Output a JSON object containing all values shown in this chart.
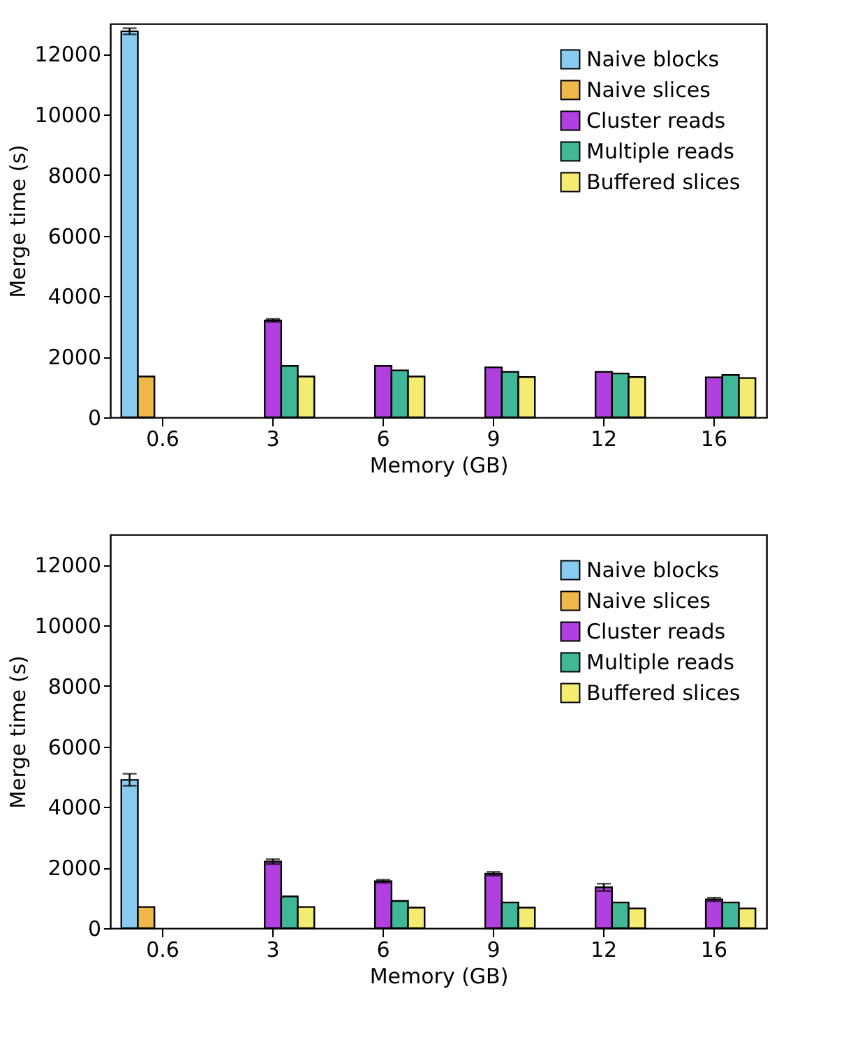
{
  "chart_data": [
    {
      "type": "bar",
      "xlabel": "Memory (GB)",
      "ylabel": "Merge time (s)",
      "categories": [
        "0.6",
        "3",
        "6",
        "9",
        "12",
        "16"
      ],
      "ylim": [
        0,
        13000
      ],
      "yticks": [
        0,
        2000,
        4000,
        6000,
        8000,
        10000,
        12000
      ],
      "grid": false,
      "legend": "top right",
      "series": [
        {
          "name": "Naive blocks",
          "color": "#87ccf0",
          "values": [
            12750,
            null,
            null,
            null,
            null,
            null
          ],
          "errors": [
            100,
            null,
            null,
            null,
            null,
            null
          ]
        },
        {
          "name": "Naive slices",
          "color": "#eeb84a",
          "values": [
            1350,
            null,
            null,
            null,
            null,
            null
          ]
        },
        {
          "name": "Cluster reads",
          "color": "#b040e0",
          "values": [
            null,
            3200,
            1700,
            1650,
            1500,
            1320
          ],
          "errors": [
            null,
            50,
            null,
            null,
            null,
            null
          ]
        },
        {
          "name": "Multiple reads",
          "color": "#40b898",
          "values": [
            null,
            1700,
            1550,
            1500,
            1450,
            1400
          ]
        },
        {
          "name": "Buffered slices",
          "color": "#f4ec70",
          "values": [
            null,
            1350,
            1350,
            1330,
            1330,
            1300
          ]
        }
      ]
    },
    {
      "type": "bar",
      "xlabel": "Memory (GB)",
      "ylabel": "Merge time (s)",
      "categories": [
        "0.6",
        "3",
        "6",
        "9",
        "12",
        "16"
      ],
      "ylim": [
        0,
        13000
      ],
      "yticks": [
        0,
        2000,
        4000,
        6000,
        8000,
        10000,
        12000
      ],
      "grid": false,
      "legend": "top right",
      "series": [
        {
          "name": "Naive blocks",
          "color": "#87ccf0",
          "values": [
            4900,
            null,
            null,
            null,
            null,
            null
          ],
          "errors": [
            200,
            null,
            null,
            null,
            null,
            null
          ]
        },
        {
          "name": "Naive slices",
          "color": "#eeb84a",
          "values": [
            700,
            null,
            null,
            null,
            null,
            null
          ]
        },
        {
          "name": "Cluster reads",
          "color": "#b040e0",
          "values": [
            null,
            2200,
            1550,
            1800,
            1350,
            950
          ],
          "errors": [
            null,
            80,
            50,
            60,
            120,
            60
          ]
        },
        {
          "name": "Multiple reads",
          "color": "#40b898",
          "values": [
            null,
            1050,
            900,
            850,
            850,
            850
          ]
        },
        {
          "name": "Buffered slices",
          "color": "#f4ec70",
          "values": [
            null,
            700,
            680,
            680,
            650,
            650
          ]
        }
      ]
    }
  ]
}
